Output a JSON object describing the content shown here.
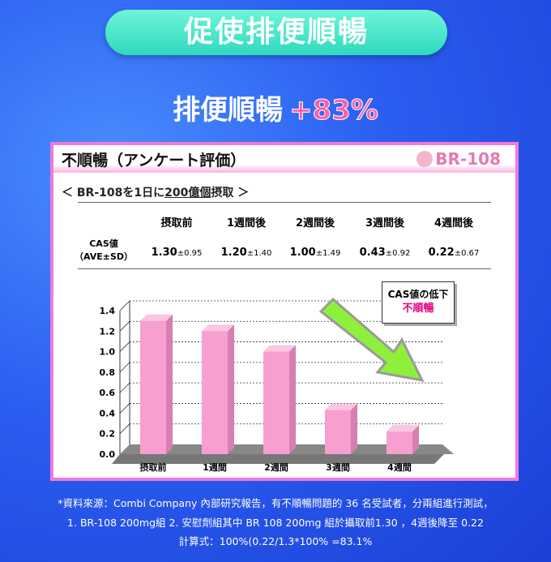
{
  "header": {
    "title": "促使排便順暢",
    "subtitle": "排便順暢",
    "subtitle_highlight": "+83%"
  },
  "card": {
    "title": "不順暢（アンケート評価）",
    "logo": "BR-108",
    "condition_prefix": "＜ BR-108を1日に",
    "condition_underlined": "200億個",
    "condition_suffix": "摂取 ＞",
    "table": {
      "headers": [
        "摂取前",
        "1週間後",
        "2週間後",
        "3週間後",
        "4週間後"
      ],
      "row_label_1": "CAS値",
      "row_label_2": "（AVE±SD）",
      "values": [
        {
          "ave": "1.30",
          "sd": "±0.95"
        },
        {
          "ave": "1.20",
          "sd": "±1.40"
        },
        {
          "ave": "1.00",
          "sd": "±1.49"
        },
        {
          "ave": "0.43",
          "sd": "±0.92"
        },
        {
          "ave": "0.22",
          "sd": "±0.67"
        }
      ]
    },
    "callout": {
      "line1": "CAS値の低下",
      "line2": "不順暢"
    }
  },
  "chart_data": {
    "type": "bar",
    "categories": [
      "摂取前",
      "1週間",
      "2週間",
      "3週間",
      "4週間"
    ],
    "values": [
      1.3,
      1.2,
      1.0,
      0.43,
      0.22
    ],
    "ylim": [
      0,
      1.4
    ],
    "yticks": [
      "0.0",
      "0.2",
      "0.4",
      "0.6",
      "0.8",
      "1.0",
      "1.2",
      "1.4"
    ],
    "grid": true,
    "bar_color": "#f7a0d0",
    "trend_arrow_color": "#8ef03a"
  },
  "footer": {
    "line1": "*資料來源：Combi Company 內部研究報告，有不順暢問題的 36 名受試者，分兩組進行測試，",
    "line2": "1. BR-108  200mg組    2. 安慰劑組其中  BR 108 200mg 組於攝取前1.30 ，4週後降至 0.22",
    "line3": "計算式：100%(0.22/1.3*100% =83.1%"
  }
}
